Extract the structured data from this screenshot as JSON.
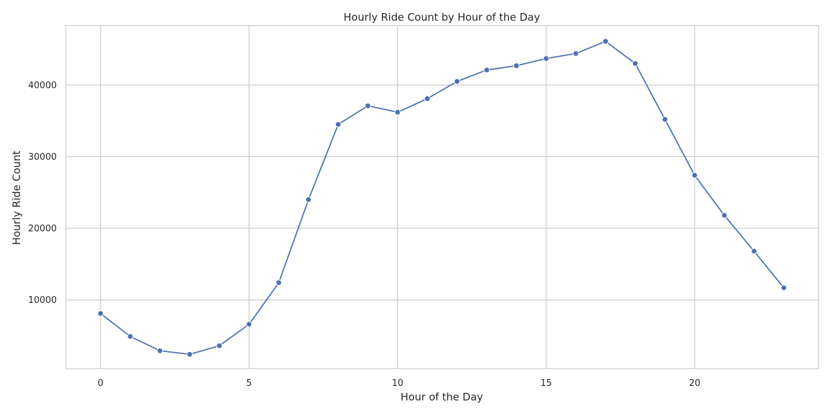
{
  "chart_data": {
    "type": "line",
    "title": "Hourly Ride Count by Hour of the Day",
    "xlabel": "Hour of the Day",
    "ylabel": "Hourly Ride Count",
    "xlim": [
      -1.17,
      24.17
    ],
    "ylim": [
      400,
      48300
    ],
    "xticks": [
      0,
      5,
      10,
      15,
      20
    ],
    "yticks": [
      10000,
      20000,
      30000,
      40000
    ],
    "grid": true,
    "series": [
      {
        "color": "#4c72b0",
        "marker": "circle",
        "x": [
          0,
          1,
          2,
          3,
          4,
          5,
          6,
          7,
          8,
          9,
          10,
          11,
          12,
          13,
          14,
          15,
          16,
          17,
          18,
          19,
          20,
          21,
          22,
          23
        ],
        "y": [
          8100,
          4900,
          2900,
          2400,
          3600,
          6600,
          12400,
          24000,
          34500,
          37100,
          36200,
          38100,
          40500,
          42100,
          42700,
          43700,
          44400,
          46100,
          43000,
          35200,
          27400,
          21800,
          16800,
          11700
        ]
      }
    ]
  }
}
